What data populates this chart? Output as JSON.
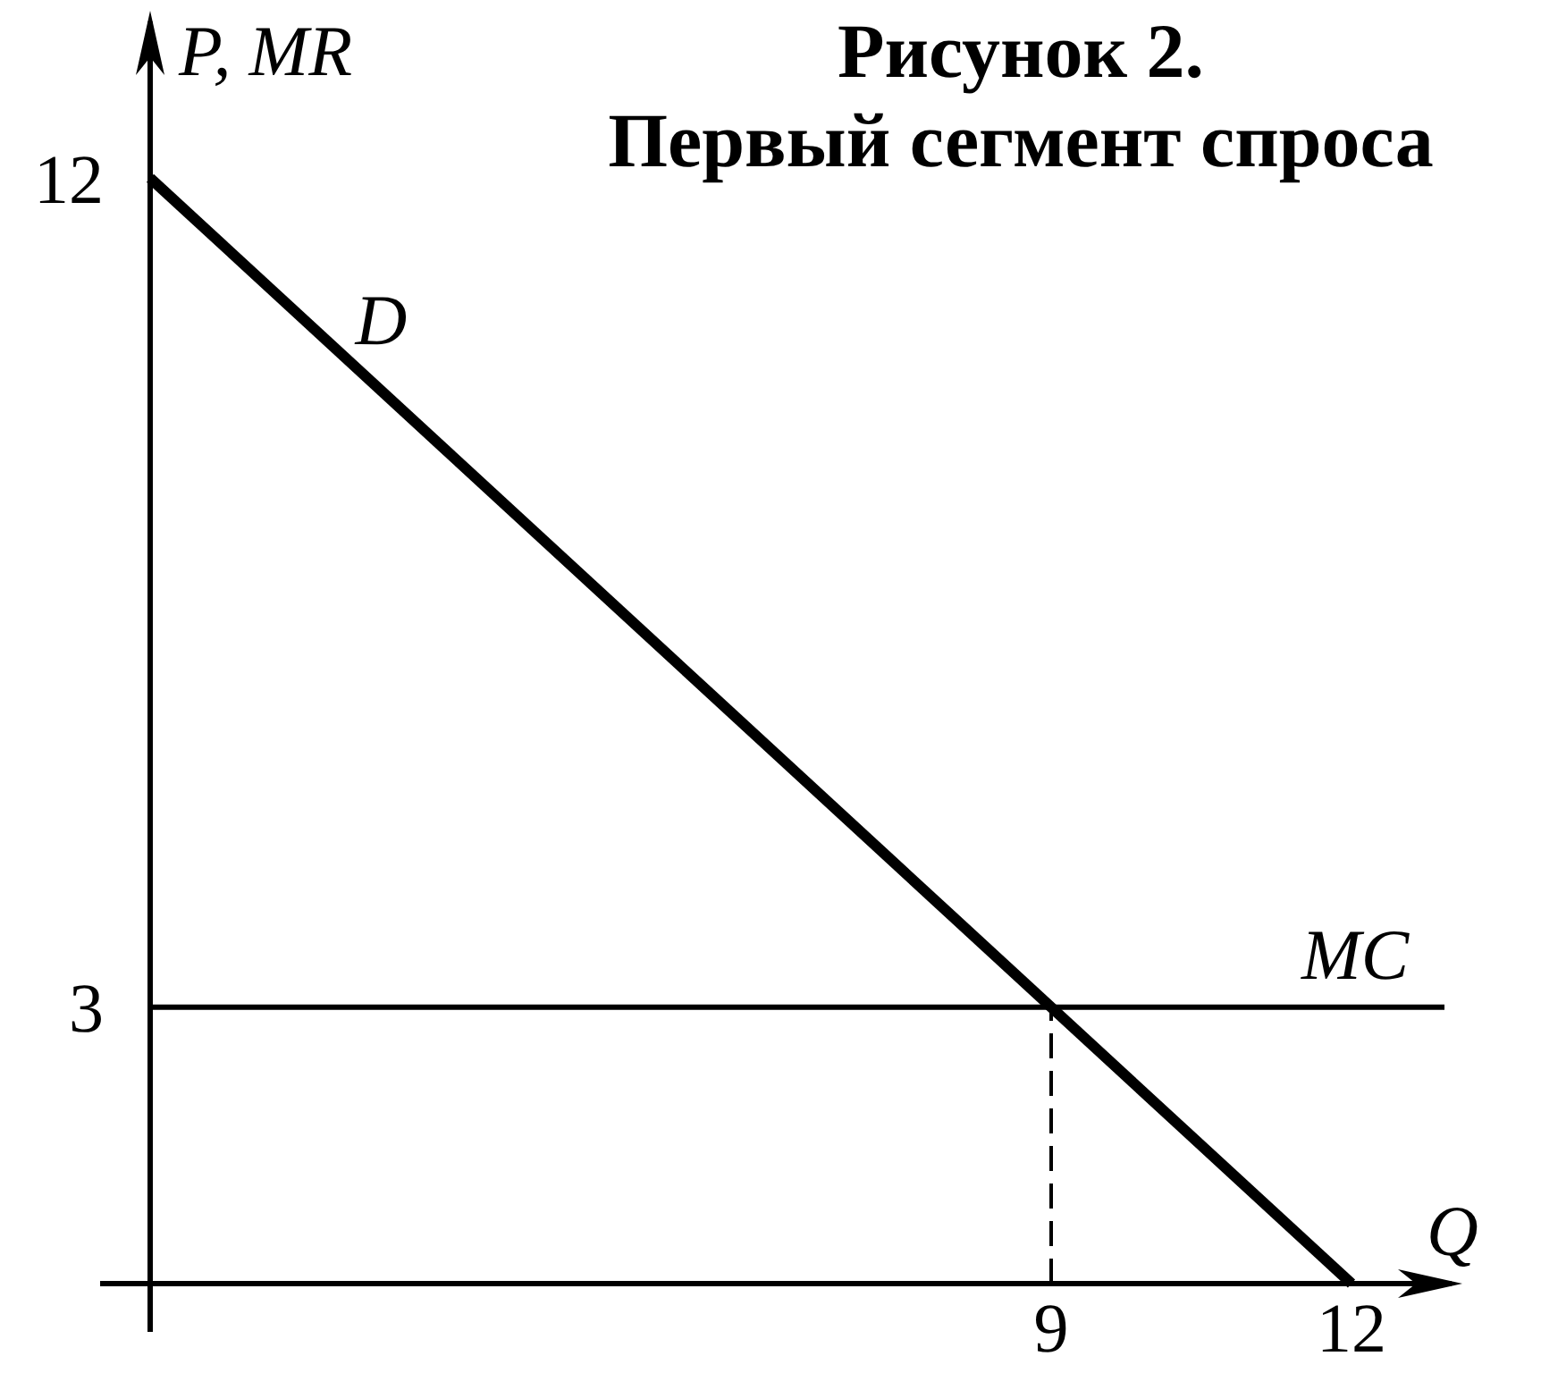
{
  "chart_data": {
    "type": "line",
    "title": "Рисунок 2.",
    "subtitle": "Первый сегмент спроса",
    "xlabel": "Q",
    "ylabel": "P, MR",
    "xlim": [
      0,
      13
    ],
    "ylim": [
      0,
      13.7
    ],
    "xticks": [
      9,
      12
    ],
    "yticks": [
      3,
      12
    ],
    "series": [
      {
        "name": "D",
        "color": "#000000",
        "x": [
          0,
          12
        ],
        "values": [
          12,
          0
        ]
      },
      {
        "color": "#000000",
        "x": [
          9,
          9
        ],
        "values": [
          0,
          3
        ],
        "line_style": "dashed"
      }
    ],
    "ref_lines": [
      {
        "axis": "y",
        "value": 3,
        "label": "MC",
        "color": "#000000"
      }
    ]
  }
}
